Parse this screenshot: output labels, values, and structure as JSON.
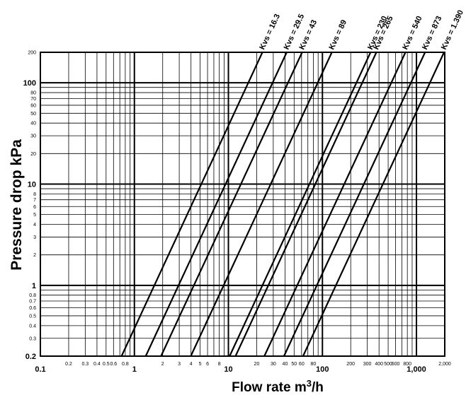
{
  "chart_data": {
    "type": "line",
    "title": "",
    "xlabel": "Flow rate m3/h",
    "ylabel": "Pressure drop kPa",
    "xscale": "log",
    "yscale": "log",
    "xlim": [
      0.1,
      2000
    ],
    "ylim": [
      0.2,
      200
    ],
    "grid": true,
    "x_ticks": [
      {
        "value": 0.1,
        "label": "0.1",
        "major": true
      },
      {
        "value": 0.2,
        "label": "0.2",
        "major": false
      },
      {
        "value": 0.3,
        "label": "0.3",
        "major": false
      },
      {
        "value": 0.4,
        "label": "0.4",
        "major": false
      },
      {
        "value": 0.5,
        "label": "0.5",
        "major": false
      },
      {
        "value": 0.6,
        "label": "0.6",
        "major": false
      },
      {
        "value": 0.8,
        "label": "0.8",
        "major": false
      },
      {
        "value": 1,
        "label": "1",
        "major": true
      },
      {
        "value": 2,
        "label": "2",
        "major": false
      },
      {
        "value": 3,
        "label": "3",
        "major": false
      },
      {
        "value": 4,
        "label": "4",
        "major": false
      },
      {
        "value": 5,
        "label": "5",
        "major": false
      },
      {
        "value": 6,
        "label": "6",
        "major": false
      },
      {
        "value": 8,
        "label": "8",
        "major": false
      },
      {
        "value": 10,
        "label": "10",
        "major": true
      },
      {
        "value": 20,
        "label": "20",
        "major": false
      },
      {
        "value": 30,
        "label": "30",
        "major": false
      },
      {
        "value": 40,
        "label": "40",
        "major": false
      },
      {
        "value": 50,
        "label": "50",
        "major": false
      },
      {
        "value": 60,
        "label": "60",
        "major": false
      },
      {
        "value": 80,
        "label": "80",
        "major": false
      },
      {
        "value": 100,
        "label": "100",
        "major": true
      },
      {
        "value": 200,
        "label": "200",
        "major": false
      },
      {
        "value": 300,
        "label": "300",
        "major": false
      },
      {
        "value": 400,
        "label": "400",
        "major": false
      },
      {
        "value": 500,
        "label": "500",
        "major": false
      },
      {
        "value": 600,
        "label": "600",
        "major": false
      },
      {
        "value": 800,
        "label": "800",
        "major": false
      },
      {
        "value": 1000,
        "label": "1,000",
        "major": true
      },
      {
        "value": 2000,
        "label": "2,000",
        "major": false
      }
    ],
    "y_ticks": [
      {
        "value": 0.2,
        "label": "0.2",
        "major": true
      },
      {
        "value": 0.3,
        "label": "0.3",
        "major": false
      },
      {
        "value": 0.4,
        "label": "0.4",
        "major": false
      },
      {
        "value": 0.5,
        "label": "0.5",
        "major": false
      },
      {
        "value": 0.6,
        "label": "0.6",
        "major": false
      },
      {
        "value": 0.7,
        "label": "0.7",
        "major": false
      },
      {
        "value": 0.8,
        "label": "0.8",
        "major": false
      },
      {
        "value": 1,
        "label": "1",
        "major": true
      },
      {
        "value": 2,
        "label": "2",
        "major": false
      },
      {
        "value": 3,
        "label": "3",
        "major": false
      },
      {
        "value": 4,
        "label": "4",
        "major": false
      },
      {
        "value": 5,
        "label": "5",
        "major": false
      },
      {
        "value": 6,
        "label": "6",
        "major": false
      },
      {
        "value": 7,
        "label": "7",
        "major": false
      },
      {
        "value": 8,
        "label": "8",
        "major": false
      },
      {
        "value": 10,
        "label": "10",
        "major": true
      },
      {
        "value": 20,
        "label": "20",
        "major": false
      },
      {
        "value": 30,
        "label": "30",
        "major": false
      },
      {
        "value": 40,
        "label": "40",
        "major": false
      },
      {
        "value": 50,
        "label": "50",
        "major": false
      },
      {
        "value": 60,
        "label": "60",
        "major": false
      },
      {
        "value": 70,
        "label": "70",
        "major": false
      },
      {
        "value": 80,
        "label": "80",
        "major": false
      },
      {
        "value": 100,
        "label": "100",
        "major": true
      },
      {
        "value": 200,
        "label": "200",
        "major": false
      }
    ],
    "series": [
      {
        "name": "Kvs = 16.3",
        "x": [
          0.73,
          23
        ],
        "y": [
          0.2,
          200
        ]
      },
      {
        "name": "Kvs = 29.5",
        "x": [
          1.32,
          41.7
        ],
        "y": [
          0.2,
          200
        ]
      },
      {
        "name": "Kvs = 43",
        "x": [
          1.92,
          60.8
        ],
        "y": [
          0.2,
          200
        ]
      },
      {
        "name": "Kvs = 89",
        "x": [
          3.98,
          126
        ],
        "y": [
          0.2,
          200
        ]
      },
      {
        "name": "Kvs = 230",
        "x": [
          10.3,
          325
        ],
        "y": [
          0.2,
          200
        ]
      },
      {
        "name": "Kvs = 265",
        "x": [
          11.9,
          375
        ],
        "y": [
          0.2,
          200
        ]
      },
      {
        "name": "Kvs = 540",
        "x": [
          24.1,
          764
        ],
        "y": [
          0.2,
          200
        ]
      },
      {
        "name": "Kvs = 873",
        "x": [
          39,
          1235
        ],
        "y": [
          0.2,
          200
        ]
      },
      {
        "name": "Kvs = 1.390",
        "x": [
          62.2,
          1966
        ],
        "y": [
          0.2,
          200
        ]
      }
    ]
  }
}
